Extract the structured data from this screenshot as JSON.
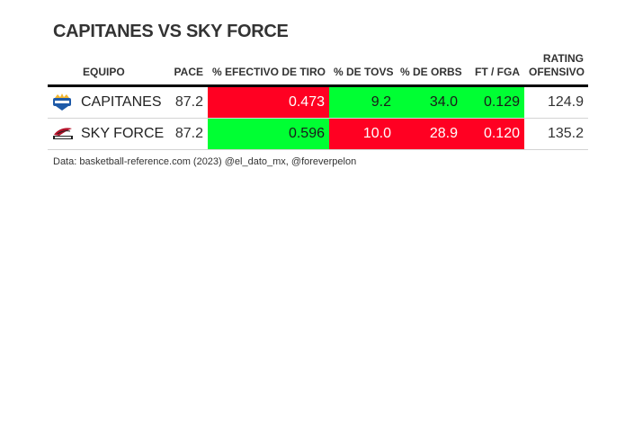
{
  "title": "CAPITANES VS SKY FORCE",
  "source": "Data: basketball-reference.com (2023) @el_dato_mx, @foreverpelon",
  "colors": {
    "high": "#00ff33",
    "low": "#ff0022",
    "neutral": "#ffffff"
  },
  "chart_data": {
    "type": "table",
    "columns": [
      "EQUIPO",
      "PACE",
      "% EFECTIVO DE TIRO",
      "% DE TOVS",
      "% DE ORBS",
      "FT / FGA",
      "RATING OFENSIVO"
    ],
    "column_headers": [
      {
        "line1": "",
        "line2": "EQUIPO"
      },
      {
        "line1": "",
        "line2": "PACE"
      },
      {
        "line1": "",
        "line2": "% EFECTIVO DE TIRO"
      },
      {
        "line1": "",
        "line2": "% DE TOVS"
      },
      {
        "line1": "",
        "line2": "% DE ORBS"
      },
      {
        "line1": "",
        "line2": "FT / FGA"
      },
      {
        "line1": "RATING",
        "line2": "OFENSIVO"
      }
    ],
    "rows": [
      {
        "logo": "capitanes-logo-icon",
        "team": "CAPITANES",
        "pace": "87.2",
        "efg": "0.473",
        "tov": "9.2",
        "orb": "34.0",
        "ftfga": "0.129",
        "ortg": "124.9",
        "highlight": {
          "efg": "low",
          "tov": "high",
          "orb": "high",
          "ftfga": "high"
        }
      },
      {
        "logo": "sky-force-logo-icon",
        "team": "SKY FORCE",
        "pace": "87.2",
        "efg": "0.596",
        "tov": "10.0",
        "orb": "28.9",
        "ftfga": "0.120",
        "ortg": "135.2",
        "highlight": {
          "efg": "high",
          "tov": "low",
          "orb": "low",
          "ftfga": "low"
        }
      }
    ]
  }
}
